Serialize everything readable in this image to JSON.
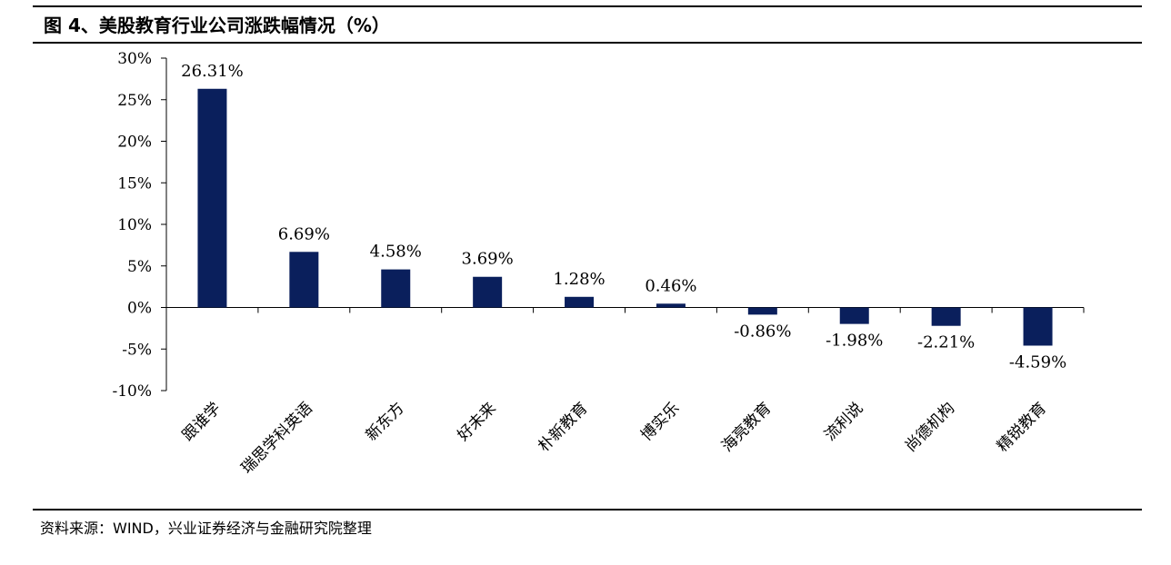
{
  "title": "图 4、美股教育行业公司涨跌幅情况（%）",
  "source": "资料来源：WIND，兴业证券经济与金融研究院整理",
  "colors": {
    "bar": "#0a1f5c",
    "axis": "#000000"
  },
  "chart_data": {
    "type": "bar",
    "title": "",
    "xlabel": "",
    "ylabel": "",
    "ylim": [
      -10,
      30
    ],
    "yticks": [
      "-10%",
      "-5%",
      "0%",
      "5%",
      "10%",
      "15%",
      "20%",
      "25%",
      "30%"
    ],
    "categories": [
      "跟谁学",
      "瑞思学科英语",
      "新东方",
      "好未来",
      "朴新教育",
      "博实乐",
      "海亮教育",
      "流利说",
      "尚德机构",
      "精锐教育"
    ],
    "values": [
      26.31,
      6.69,
      4.58,
      3.69,
      1.28,
      0.46,
      -0.86,
      -1.98,
      -2.21,
      -4.59
    ],
    "data_labels": [
      "26.31%",
      "6.69%",
      "4.58%",
      "3.69%",
      "1.28%",
      "0.46%",
      "-0.86%",
      "-1.98%",
      "-2.21%",
      "-4.59%"
    ],
    "grid": false,
    "legend": "none"
  }
}
